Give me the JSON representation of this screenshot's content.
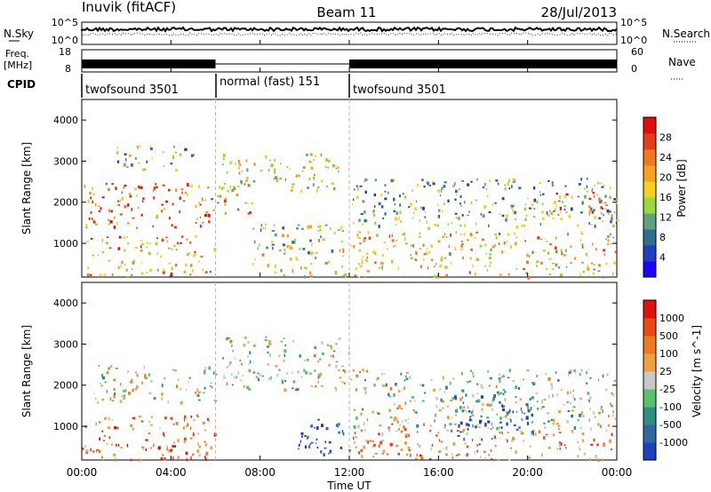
{
  "header": {
    "station": "Inuvik (fitACF)",
    "beam": "Beam 11",
    "date": "28/Jul/2013"
  },
  "chart_data": [
    {
      "type": "line",
      "panel": "noise",
      "left_label": "N.Sky",
      "right_label": "N.Search",
      "left_ticks": [
        "10^5",
        "10^0"
      ],
      "right_ticks": [
        "10^5",
        "10^0"
      ],
      "x_ticks": [
        "00:00",
        "04:00",
        "08:00",
        "12:00",
        "16:00",
        "20:00",
        "00:00"
      ],
      "series": [
        {
          "name": "N.Sky",
          "style": "solid"
        },
        {
          "name": "N.Search",
          "style": "dotted"
        }
      ]
    },
    {
      "type": "line",
      "panel": "frequency",
      "left_label_line1": "Freq.",
      "left_label_line2": "[MHz]",
      "right_label": "Nave",
      "left_ticks": [
        "18",
        "8"
      ],
      "right_ticks": [
        "60",
        "0"
      ],
      "series": [
        {
          "name": "Freq.",
          "style": "solid"
        },
        {
          "name": "Nave",
          "style": "dotted"
        }
      ]
    },
    {
      "type": "table",
      "panel": "cpid",
      "label": "CPID",
      "segments": [
        {
          "text": "twofsound 3501",
          "start_hour": 0,
          "end_hour": 6
        },
        {
          "text": "normal (fast) 151",
          "start_hour": 6,
          "end_hour": 12
        },
        {
          "text": "twofsound 3501",
          "start_hour": 12,
          "end_hour": 24
        }
      ]
    },
    {
      "type": "heatmap",
      "panel": "power",
      "ylabel": "Slant Range [km]",
      "yticks": [
        1000,
        2000,
        3000,
        4000
      ],
      "ylim": [
        180,
        4500
      ],
      "xlim_hours": [
        0,
        24
      ],
      "colorbar_label": "Power [dB]",
      "colorbar_ticks": [
        "28",
        "24",
        "20",
        "16",
        "12",
        "8",
        "4"
      ],
      "colors": [
        "#1e00ff",
        "#1f3fbf",
        "#2e6e8f",
        "#5fa27f",
        "#99d940",
        "#f2d21a",
        "#f7a21d",
        "#f07820",
        "#e83b1a",
        "#e00d0d"
      ],
      "regions": [
        {
          "start_hour": 0.1,
          "end_hour": 6.0,
          "range_lo": 1400,
          "range_hi": 2500,
          "level": 0.8
        },
        {
          "start_hour": 0.2,
          "end_hour": 6.0,
          "range_lo": 700,
          "range_hi": 1200,
          "level": 0.7
        },
        {
          "start_hour": 0.0,
          "end_hour": 6.0,
          "range_lo": 200,
          "range_hi": 600,
          "level": 0.65
        },
        {
          "start_hour": 1.5,
          "end_hour": 5.0,
          "range_lo": 2800,
          "range_hi": 3400,
          "level": 0.4
        },
        {
          "start_hour": 6.2,
          "end_hour": 11.5,
          "range_lo": 2300,
          "range_hi": 3200,
          "level": 0.55
        },
        {
          "start_hour": 6.0,
          "end_hour": 7.8,
          "range_lo": 1700,
          "range_hi": 2500,
          "level": 0.6
        },
        {
          "start_hour": 7.5,
          "end_hour": 11.8,
          "range_lo": 200,
          "range_hi": 1500,
          "level": 0.5
        },
        {
          "start_hour": 12.0,
          "end_hour": 24.0,
          "range_lo": 1400,
          "range_hi": 2600,
          "level": 0.35
        },
        {
          "start_hour": 12.0,
          "end_hour": 24.0,
          "range_lo": 200,
          "range_hi": 1300,
          "level": 0.6
        },
        {
          "start_hour": 20.5,
          "end_hour": 24.0,
          "range_lo": 1700,
          "range_hi": 2300,
          "level": 0.75
        }
      ]
    },
    {
      "type": "heatmap",
      "panel": "velocity",
      "ylabel": "Slant Range [km]",
      "yticks": [
        1000,
        2000,
        3000,
        4000
      ],
      "ylim": [
        180,
        4500
      ],
      "xlim_hours": [
        0,
        24
      ],
      "xlabel": "Time UT",
      "colorbar_label": "Velocity [m s^-1]",
      "colorbar_ticks": [
        "1000",
        "500",
        "100",
        "25",
        "-25",
        "-100",
        "-500",
        "-1000"
      ],
      "colors": [
        "#1f3fbf",
        "#2f67a3",
        "#2e8f7f",
        "#59c16a",
        "#c8c8c4",
        "#f0a040",
        "#f07a20",
        "#ea4a18",
        "#e01010"
      ],
      "regions": [
        {
          "start_hour": 0.5,
          "end_hour": 6.0,
          "range_lo": 1600,
          "range_hi": 2500,
          "level": 0.5
        },
        {
          "start_hour": 0.0,
          "end_hour": 6.0,
          "range_lo": 200,
          "range_hi": 1300,
          "level": 0.75
        },
        {
          "start_hour": 6.3,
          "end_hour": 12.0,
          "range_lo": 1900,
          "range_hi": 3200,
          "level": 0.5
        },
        {
          "start_hour": 9.5,
          "end_hour": 12.0,
          "range_lo": 300,
          "range_hi": 1200,
          "level": 0.1
        },
        {
          "start_hour": 12.0,
          "end_hour": 24.0,
          "range_lo": 1000,
          "range_hi": 2400,
          "level": 0.45
        },
        {
          "start_hour": 12.0,
          "end_hour": 24.0,
          "range_lo": 200,
          "range_hi": 1000,
          "level": 0.7
        },
        {
          "start_hour": 16.5,
          "end_hour": 20.5,
          "range_lo": 700,
          "range_hi": 1800,
          "level": 0.15
        }
      ]
    }
  ]
}
